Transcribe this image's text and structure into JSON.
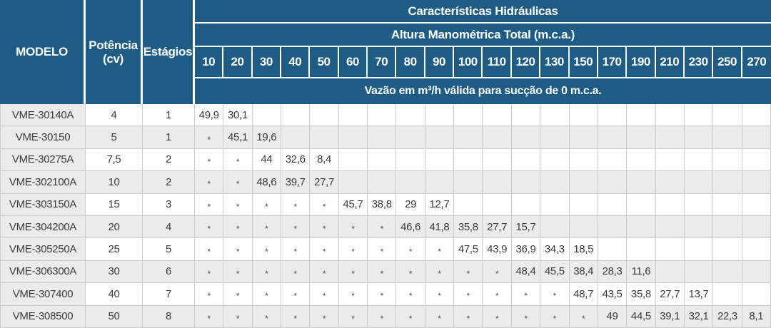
{
  "colors": {
    "header_blue": "#1e5c85",
    "stripe_gray": "#ebebeb",
    "grid_border": "#cccccc",
    "body_text": "#3c3c3c"
  },
  "header": {
    "modelo": "MODELO",
    "potencia_line1": "Potência",
    "potencia_line2": "(cv)",
    "estagios": "Estágios",
    "group": "Características Hidráulicas",
    "subgroup": "Altura Manométrica Total (m.c.a.)",
    "flow_note": "Vazão em m³/h válida para sucção de 0 m.c.a.",
    "columns": [
      "10",
      "20",
      "30",
      "40",
      "50",
      "60",
      "70",
      "80",
      "90",
      "100",
      "110",
      "120",
      "130",
      "150",
      "170",
      "190",
      "210",
      "230",
      "250",
      "270"
    ]
  },
  "rows": [
    {
      "modelo": "VME-30140A",
      "potencia": "4",
      "estagios": "1",
      "values": [
        "49,9",
        "30,1",
        "",
        "",
        "",
        "",
        "",
        "",
        "",
        "",
        "",
        "",
        "",
        "",
        "",
        "",
        "",
        "",
        "",
        ""
      ]
    },
    {
      "modelo": "VME-30150",
      "potencia": "5",
      "estagios": "1",
      "values": [
        "*",
        "45,1",
        "19,6",
        "",
        "",
        "",
        "",
        "",
        "",
        "",
        "",
        "",
        "",
        "",
        "",
        "",
        "",
        "",
        "",
        ""
      ]
    },
    {
      "modelo": "VME-30275A",
      "potencia": "7,5",
      "estagios": "2",
      "values": [
        "*",
        "*",
        "44",
        "32,6",
        "8,4",
        "",
        "",
        "",
        "",
        "",
        "",
        "",
        "",
        "",
        "",
        "",
        "",
        "",
        "",
        ""
      ]
    },
    {
      "modelo": "VME-302100A",
      "potencia": "10",
      "estagios": "2",
      "values": [
        "*",
        "*",
        "48,6",
        "39,7",
        "27,7",
        "",
        "",
        "",
        "",
        "",
        "",
        "",
        "",
        "",
        "",
        "",
        "",
        "",
        "",
        ""
      ]
    },
    {
      "modelo": "VME-303150A",
      "potencia": "15",
      "estagios": "3",
      "values": [
        "*",
        "*",
        "*",
        "*",
        "*",
        "45,7",
        "38,8",
        "29",
        "12,7",
        "",
        "",
        "",
        "",
        "",
        "",
        "",
        "",
        "",
        "",
        ""
      ]
    },
    {
      "modelo": "VME-304200A",
      "potencia": "20",
      "estagios": "4",
      "values": [
        "*",
        "*",
        "*",
        "*",
        "*",
        "*",
        "*",
        "46,6",
        "41,8",
        "35,8",
        "27,7",
        "15,7",
        "",
        "",
        "",
        "",
        "",
        "",
        "",
        ""
      ]
    },
    {
      "modelo": "VME-305250A",
      "potencia": "25",
      "estagios": "5",
      "values": [
        "*",
        "*",
        "*",
        "*",
        "*",
        "*",
        "*",
        "*",
        "*",
        "47,5",
        "43,9",
        "36,9",
        "34,3",
        "18,5",
        "",
        "",
        "",
        "",
        "",
        ""
      ]
    },
    {
      "modelo": "VME-306300A",
      "potencia": "30",
      "estagios": "6",
      "values": [
        "*",
        "*",
        "*",
        "*",
        "*",
        "*",
        "*",
        "*",
        "*",
        "*",
        "*",
        "48,4",
        "45,5",
        "38,4",
        "28,3",
        "11,6",
        "",
        "",
        "",
        ""
      ]
    },
    {
      "modelo": "VME-307400",
      "potencia": "40",
      "estagios": "7",
      "values": [
        "*",
        "*",
        "*",
        "*",
        "*",
        "*",
        "*",
        "*",
        "*",
        "*",
        "*",
        "*",
        "*",
        "48,7",
        "43,5",
        "35,8",
        "27,7",
        "13,7",
        "",
        ""
      ]
    },
    {
      "modelo": "VME-308500",
      "potencia": "50",
      "estagios": "8",
      "values": [
        "*",
        "*",
        "*",
        "*",
        "*",
        "*",
        "*",
        "*",
        "*",
        "*",
        "*",
        "*",
        "*",
        "*",
        "49",
        "44,5",
        "39,1",
        "32,1",
        "22,3",
        "8,1"
      ]
    }
  ]
}
